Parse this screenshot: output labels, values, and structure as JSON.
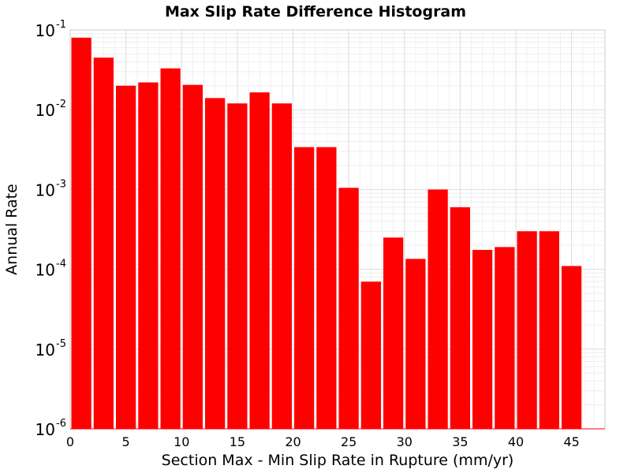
{
  "chart_data": {
    "type": "bar",
    "title": "Max Slip Rate Difference Histogram",
    "xlabel": "Section Max - Min Slip Rate in Rupture (mm/yr)",
    "ylabel": "Annual Rate",
    "xlim": [
      0,
      48
    ],
    "ylim": [
      1e-06,
      0.1
    ],
    "yscale": "log",
    "bin_width": 2,
    "x_ticks": [
      0,
      5,
      10,
      15,
      20,
      25,
      30,
      35,
      40,
      45
    ],
    "y_ticks": [
      {
        "base": "10",
        "exp": "-6"
      },
      {
        "base": "10",
        "exp": "-5"
      },
      {
        "base": "10",
        "exp": "-4"
      },
      {
        "base": "10",
        "exp": "-3"
      },
      {
        "base": "10",
        "exp": "-2"
      },
      {
        "base": "10",
        "exp": "-1"
      }
    ],
    "bar_color": "#ff0000",
    "grid": true,
    "x": [
      1,
      3,
      5,
      7,
      9,
      11,
      13,
      15,
      17,
      19,
      21,
      23,
      25,
      27,
      29,
      31,
      33,
      35,
      37,
      39,
      41,
      43,
      45
    ],
    "values": [
      0.08,
      0.045,
      0.02,
      0.022,
      0.033,
      0.0205,
      0.014,
      0.012,
      0.0165,
      0.012,
      0.0034,
      0.0034,
      0.00105,
      7e-05,
      0.00025,
      0.000135,
      0.001,
      0.0006,
      0.000175,
      0.00019,
      0.0003,
      0.0003,
      0.00011
    ]
  }
}
